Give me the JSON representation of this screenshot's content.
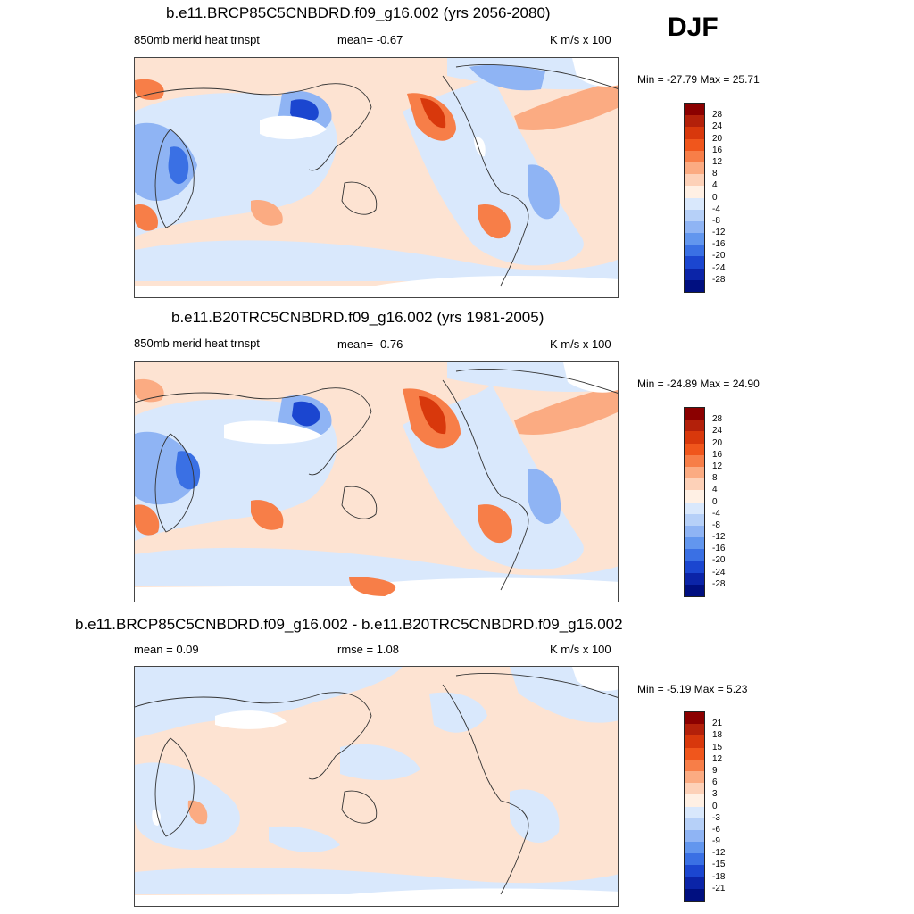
{
  "season": "DJF",
  "units": "K m/s x 100",
  "panels": [
    {
      "title": "b.e11.BRCP85C5CNBDRD.f09_g16.002 (yrs 2056-2080)",
      "variable": "850mb merid heat trnspt",
      "stat_left": "",
      "stat_mid": "mean=  -0.67",
      "minmax": "Min = -27.79 Max =  25.71",
      "min": -27.79,
      "max": 25.71,
      "mean": -0.67
    },
    {
      "title": "b.e11.B20TRC5CNBDRD.f09_g16.002 (yrs 1981-2005)",
      "variable": "850mb merid heat trnspt",
      "stat_left": "",
      "stat_mid": "mean=  -0.76",
      "minmax": "Min = -24.89 Max =  24.90",
      "min": -24.89,
      "max": 24.9,
      "mean": -0.76
    },
    {
      "title": "b.e11.BRCP85C5CNBDRD.f09_g16.002 - b.e11.B20TRC5CNBDRD.f09_g16.002",
      "variable": "",
      "stat_left": "mean =   0.09",
      "stat_mid": "rmse =   1.08",
      "minmax": "Min =  -5.19 Max =   5.23",
      "min": -5.19,
      "max": 5.23,
      "mean": 0.09,
      "rmse": 1.08
    }
  ],
  "colorbars": [
    {
      "labels": [
        "28",
        "24",
        "20",
        "16",
        "12",
        "8",
        "4",
        "0",
        "-4",
        "-8",
        "-12",
        "-16",
        "-20",
        "-24",
        "-28"
      ],
      "colors": [
        "#8b0000",
        "#b3200a",
        "#d8380c",
        "#f0561c",
        "#f77e48",
        "#fbab82",
        "#fdd1b8",
        "#fff0e4",
        "#d9e8fc",
        "#b6d0f8",
        "#8fb4f4",
        "#6296ee",
        "#3a70e4",
        "#1b46d0",
        "#0b24a8",
        "#000f80"
      ]
    },
    {
      "labels": [
        "28",
        "24",
        "20",
        "16",
        "12",
        "8",
        "4",
        "0",
        "-4",
        "-8",
        "-12",
        "-16",
        "-20",
        "-24",
        "-28"
      ],
      "colors": [
        "#8b0000",
        "#b3200a",
        "#d8380c",
        "#f0561c",
        "#f77e48",
        "#fbab82",
        "#fdd1b8",
        "#fff0e4",
        "#d9e8fc",
        "#b6d0f8",
        "#8fb4f4",
        "#6296ee",
        "#3a70e4",
        "#1b46d0",
        "#0b24a8",
        "#000f80"
      ]
    },
    {
      "labels": [
        "21",
        "18",
        "15",
        "12",
        "9",
        "6",
        "3",
        "0",
        "-3",
        "-6",
        "-9",
        "-12",
        "-15",
        "-18",
        "-21"
      ],
      "colors": [
        "#8b0000",
        "#b3200a",
        "#d8380c",
        "#f0561c",
        "#f77e48",
        "#fbab82",
        "#fdd1b8",
        "#fff0e4",
        "#d9e8fc",
        "#b6d0f8",
        "#8fb4f4",
        "#6296ee",
        "#3a70e4",
        "#1b46d0",
        "#0b24a8",
        "#000f80"
      ]
    }
  ],
  "map_colors": {
    "ocean_pos": "#fde3d2",
    "neg_light": "#d9e8fc",
    "neg_mid": "#8fb4f4",
    "neg_strong": "#1b46d0",
    "pos_mid": "#f77e48",
    "pos_strong": "#d8380c",
    "masked": "#ffffff",
    "coast": "#333333"
  }
}
